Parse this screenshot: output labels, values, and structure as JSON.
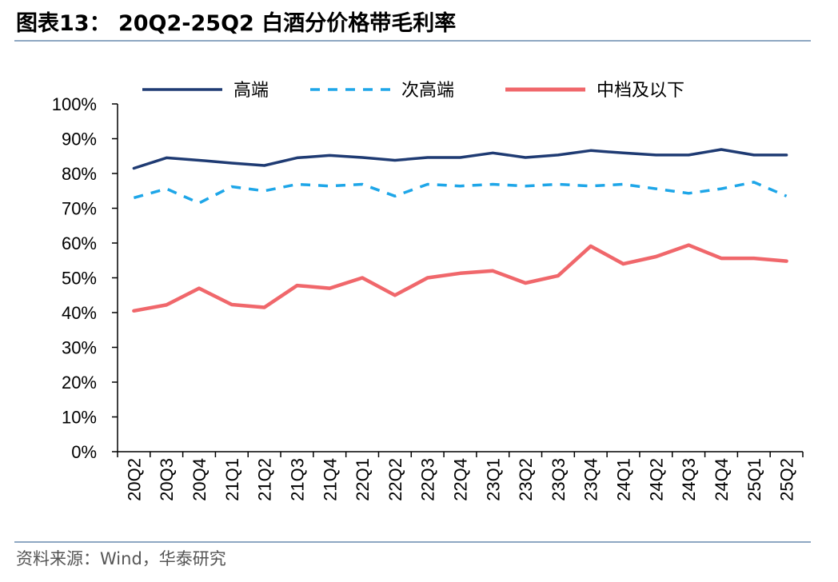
{
  "header": {
    "title": "图表13： 20Q2-25Q2 白酒分价格带毛利率"
  },
  "footer": {
    "source": "资料来源：Wind，华泰研究"
  },
  "chart_data": {
    "type": "line",
    "x": [
      "20Q2",
      "20Q3",
      "20Q4",
      "21Q1",
      "21Q2",
      "21Q3",
      "21Q4",
      "22Q1",
      "22Q2",
      "22Q3",
      "22Q4",
      "23Q1",
      "23Q2",
      "23Q3",
      "23Q4",
      "24Q1",
      "24Q2",
      "24Q3",
      "24Q4",
      "25Q1",
      "25Q2"
    ],
    "ylim": [
      0,
      100
    ],
    "yticks": [
      "0%",
      "10%",
      "20%",
      "30%",
      "40%",
      "50%",
      "60%",
      "70%",
      "80%",
      "90%",
      "100%"
    ],
    "grid": false,
    "legend": "top",
    "series": [
      {
        "name": "高端",
        "color": "#1f3b73",
        "style": "solid",
        "values": [
          81.5,
          84.5,
          83.8,
          83.0,
          82.3,
          84.5,
          85.2,
          84.6,
          83.8,
          84.6,
          84.6,
          85.9,
          84.6,
          85.3,
          86.6,
          85.9,
          85.3,
          85.3,
          86.9,
          85.3,
          85.3
        ]
      },
      {
        "name": "次高端",
        "color": "#1ea6e8",
        "style": "dashed",
        "values": [
          73.0,
          75.6,
          71.5,
          76.2,
          75.0,
          76.9,
          76.4,
          76.9,
          73.5,
          76.9,
          76.4,
          76.9,
          76.4,
          76.9,
          76.4,
          76.9,
          75.6,
          74.3,
          75.6,
          77.5,
          73.5
        ]
      },
      {
        "name": "中档及以下",
        "color": "#f0676b",
        "style": "solid",
        "values": [
          40.5,
          42.2,
          47.0,
          42.3,
          41.5,
          47.8,
          47.0,
          50.0,
          45.0,
          50.0,
          51.3,
          52.0,
          48.5,
          50.6,
          59.1,
          54.0,
          56.1,
          59.4,
          55.6,
          55.6,
          54.8
        ]
      }
    ]
  }
}
